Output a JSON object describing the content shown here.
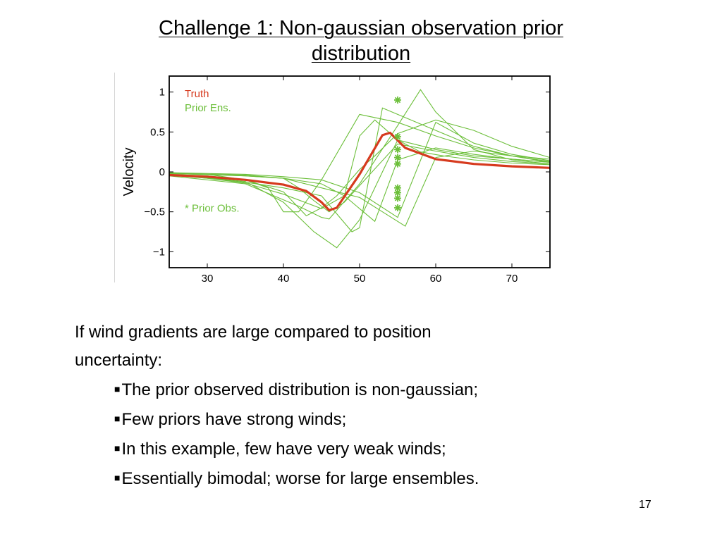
{
  "slide": {
    "title_line1": "Challenge 1: Non-gaussian observation prior",
    "title_line2": "distribution",
    "intro_line1": "If wind gradients are large compared to  position",
    "intro_line2": "uncertainty:",
    "bullets": [
      "The prior observed distribution is non-gaussian;",
      "Few priors have strong winds;",
      "In this example, few have very weak winds;",
      "Essentially bimodal; worse for large ensembles."
    ],
    "page_number": "17"
  },
  "chart_data": {
    "type": "line",
    "ylabel": "Velocity",
    "xlabel": "",
    "xlim": [
      25,
      75
    ],
    "ylim": [
      -1.2,
      1.2
    ],
    "xticks": [
      30,
      40,
      50,
      60,
      70
    ],
    "yticks": [
      1,
      0.5,
      0,
      -0.5,
      -1
    ],
    "ytick_labels": [
      "1",
      "0.5",
      "0",
      "−0.5",
      "−1"
    ],
    "legend": [
      {
        "label": "Truth",
        "color": "#d63a1e"
      },
      {
        "label": "Prior Ens.",
        "color": "#6cbf3a"
      }
    ],
    "annotation": "* Prior Obs.",
    "colors": {
      "truth": "#d63a1e",
      "ensemble": "#6cbf3a",
      "obs": "#6cbf3a",
      "axis": "#000000"
    },
    "truth": {
      "x": [
        25,
        30,
        35,
        40,
        43,
        45,
        46,
        47,
        50,
        53,
        54,
        56,
        60,
        65,
        70,
        75
      ],
      "y": [
        -0.04,
        -0.06,
        -0.1,
        -0.16,
        -0.24,
        -0.38,
        -0.48,
        -0.45,
        -0.03,
        0.46,
        0.49,
        0.3,
        0.16,
        0.1,
        0.07,
        0.05
      ]
    },
    "ensemble": [
      {
        "x": [
          25,
          35,
          42,
          45,
          46,
          50,
          55,
          58,
          60,
          65,
          70,
          75
        ],
        "y": [
          -0.05,
          -0.15,
          -0.43,
          -0.57,
          -0.59,
          -0.15,
          0.58,
          1.03,
          0.75,
          0.28,
          0.15,
          0.1
        ]
      },
      {
        "x": [
          25,
          35,
          40,
          45,
          48,
          52,
          55,
          60,
          65,
          70,
          75
        ],
        "y": [
          -0.02,
          -0.05,
          -0.08,
          -0.15,
          -0.3,
          -0.62,
          0.15,
          0.3,
          0.22,
          0.16,
          0.12
        ]
      },
      {
        "x": [
          25,
          35,
          40,
          44,
          47,
          50,
          55,
          60,
          65,
          75
        ],
        "y": [
          -0.03,
          -0.12,
          -0.38,
          -0.75,
          -0.95,
          -0.6,
          0.4,
          0.28,
          0.2,
          0.12
        ]
      },
      {
        "x": [
          25,
          30,
          35,
          40,
          45,
          48,
          50,
          52,
          55,
          58,
          61,
          65,
          70,
          75
        ],
        "y": [
          -0.04,
          -0.08,
          -0.14,
          -0.28,
          -0.46,
          -0.3,
          0.45,
          0.65,
          0.4,
          0.25,
          0.2,
          0.15,
          0.11,
          0.09
        ]
      },
      {
        "x": [
          25,
          35,
          40,
          42,
          44,
          46,
          48,
          55,
          60,
          65,
          70,
          75
        ],
        "y": [
          -0.02,
          -0.04,
          -0.08,
          -0.2,
          -0.36,
          -0.5,
          -0.38,
          0.35,
          0.26,
          0.18,
          0.13,
          0.1
        ]
      },
      {
        "x": [
          25,
          35,
          40,
          45,
          50,
          55,
          60,
          65,
          70,
          75
        ],
        "y": [
          -0.01,
          -0.03,
          -0.06,
          -0.1,
          -0.26,
          -0.57,
          0.62,
          0.36,
          0.22,
          0.14
        ]
      },
      {
        "x": [
          25,
          30,
          35,
          40,
          45,
          49,
          50,
          53,
          55,
          60,
          65,
          70,
          75
        ],
        "y": [
          -0.04,
          -0.08,
          -0.13,
          -0.2,
          -0.3,
          -0.75,
          -0.7,
          0.8,
          0.72,
          0.52,
          0.32,
          0.2,
          0.12
        ]
      },
      {
        "x": [
          25,
          30,
          35,
          40,
          45,
          50,
          53,
          56,
          60,
          65,
          70,
          75
        ],
        "y": [
          -0.02,
          -0.03,
          -0.05,
          -0.08,
          -0.2,
          -0.32,
          -0.5,
          -0.68,
          0.18,
          0.26,
          0.2,
          0.16
        ]
      },
      {
        "x": [
          25,
          30,
          35,
          40,
          43,
          45,
          47,
          50,
          52,
          55,
          60,
          65,
          70,
          75
        ],
        "y": [
          -0.01,
          -0.03,
          -0.1,
          -0.25,
          -0.55,
          -0.45,
          -0.3,
          0.03,
          0.2,
          0.48,
          0.65,
          0.52,
          0.32,
          0.18
        ]
      },
      {
        "x": [
          25,
          30,
          35,
          38,
          40,
          42,
          45,
          50,
          55,
          60,
          65,
          70,
          75
        ],
        "y": [
          -0.03,
          -0.05,
          -0.1,
          -0.2,
          -0.5,
          -0.5,
          -0.1,
          0.72,
          0.62,
          0.45,
          0.3,
          0.2,
          0.13
        ]
      }
    ],
    "prior_obs": {
      "x": [
        55,
        55,
        55,
        55,
        55,
        55,
        55,
        55,
        55
      ],
      "y": [
        0.9,
        0.44,
        0.28,
        0.18,
        0.1,
        -0.2,
        -0.26,
        -0.33,
        -0.45
      ]
    }
  }
}
